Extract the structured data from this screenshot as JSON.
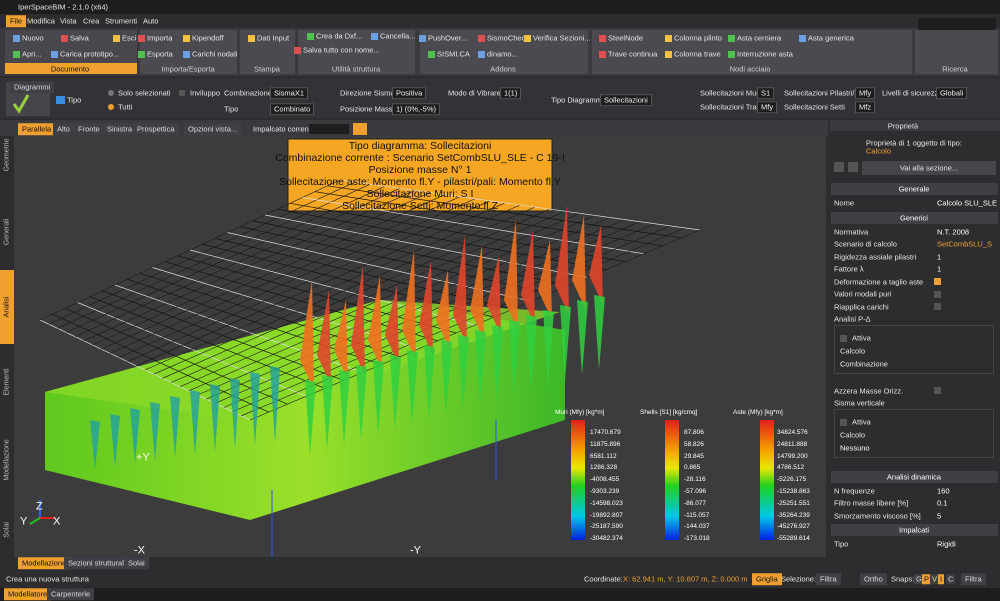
{
  "title_bar": {
    "title": "IperSpaceBIM - 2.1.0 (x64)"
  },
  "menu": [
    "File",
    "Modifica",
    "Vista",
    "Crea",
    "Strumenti",
    "Auto"
  ],
  "ribbon": [
    {
      "label": "Documento",
      "items": [
        "Nuovo",
        "Salva",
        "Esci",
        "Apri...",
        "Carica prototipo..."
      ]
    },
    {
      "label": "Importa/Esporta",
      "items": [
        "Importa",
        "Kipendoff",
        "Esporta",
        "Carichi nodali"
      ]
    },
    {
      "label": "Stampa",
      "items": [
        "Dati Input"
      ]
    },
    {
      "label": "Utilità struttura",
      "items": [
        "Crea da Dxf...",
        "Cancella...",
        "Salva tutto con nome..."
      ]
    },
    {
      "label": "Addons",
      "items": [
        "PushOver...",
        "SismoCheck",
        "Verifica Sezioni...",
        "SISMI.CA",
        "dinamo..."
      ]
    },
    {
      "label": "Nodi acciaio",
      "items": [
        "SteelNode",
        "Colonna plinto",
        "Asta cerniera",
        "Asta generica",
        "Trave continua",
        "Colonna trave",
        "Interruzione asta"
      ]
    },
    {
      "label": "Ricerca",
      "items": []
    }
  ],
  "diagram_toolbar": {
    "tab": "Diagrammi",
    "tipo": "Tipo",
    "scope": [
      "Solo selezionati",
      "Tutti"
    ],
    "inviluppo": "Inviluppo",
    "fields": [
      {
        "label": "Combinazione",
        "value": "SismaX1"
      },
      {
        "label": "Direzione Sisma",
        "value": "Positiva"
      },
      {
        "label": "Modo di Vibrare",
        "value": "1(1)"
      },
      {
        "label": "Tipo",
        "value": "Combinato"
      },
      {
        "label": "Posizione Masse",
        "value": "1) (0%,-5%)"
      },
      {
        "label": "Tipo Diagramma",
        "value": "Sollecitazioni"
      },
      {
        "label": "Sollecitazioni Muri",
        "value": "S1"
      },
      {
        "label": "Sollecitazioni Pilastri/Pali",
        "value": "Mfy"
      },
      {
        "label": "Livelli di sicurezza",
        "value": "Globali"
      },
      {
        "label": "Sollecitazioni Travi",
        "value": "Mfy"
      },
      {
        "label": "Sollecitazioni Setti",
        "value": "Mfz"
      }
    ]
  },
  "view_tabs": [
    "Parallela",
    "Alto",
    "Fronte",
    "Sinistra",
    "Prospettica",
    "Opzioni vista..."
  ],
  "impalcato_label": "Impalcato corrente:",
  "side_tabs": [
    "Geometrie",
    "Generali",
    "Analisi",
    "Elementi",
    "Modellazione",
    "Solai"
  ],
  "info_box": [
    "Tipo diagramma: Sollecitazioni",
    "Combinazione corrente : Scenario SetCombSLU_SLE - C 19-I",
    "Posizione masse N° 1",
    "Sollecitazione aste: Momento fl.Y - pilastri/pali: Momento fl.Y",
    "Sollecitazione Muri: S I",
    "Sollecitazione Setti: Momento fl.Z"
  ],
  "legends": [
    {
      "title": "Muri (Mfy) [kg*m]",
      "values": [
        "17470.679",
        "11875.896",
        "6581.112",
        "1286.328",
        "-4008.455",
        "-9303.239",
        "-14598.023",
        "-19892.807",
        "-25187.590",
        "-30482.374"
      ]
    },
    {
      "title": "Shells [S1] [kg/cmq]",
      "values": [
        "87.806",
        "58.826",
        "29.845",
        "0.865",
        "-28.116",
        "-57.096",
        "-86.077",
        "-115.057",
        "-144.037",
        "-173.018"
      ]
    },
    {
      "title": "Aste (Mfy) [kg*m]",
      "values": [
        "34824.576",
        "24811.888",
        "14799.200",
        "4786.512",
        "-5226.175",
        "-15238.863",
        "-25251.551",
        "-35264.239",
        "-45276.927",
        "-55289.614"
      ]
    }
  ],
  "axis_labels": [
    "+Y",
    "-X",
    "-Y",
    "Z",
    "Y",
    "X"
  ],
  "viewport_tabs": [
    "Modellazione",
    "Sezioni strutturali",
    "Solai"
  ],
  "status": {
    "message": "Crea una nuova struttura",
    "coord_label": "Coordinate:",
    "coord_value": "X: 62.941 m, Y: 10.607 m, Z: 0.000 m",
    "grid": "Griglia",
    "selection_label": "Selezione:",
    "selection_filter": "Filtra",
    "ortho": "Ortho",
    "snaps_label": "Snaps:",
    "snaps": [
      "G",
      "P",
      "V",
      "I",
      "C"
    ],
    "filter": "Filtra"
  },
  "app_tabs": [
    "Modellatore",
    "Carpenterie"
  ],
  "properties": {
    "title": "Proprietà",
    "subtitle": "Proprietà di 1 oggetto di tipo:",
    "object_type": "Calcolo",
    "goto": "Vai alla sezione...",
    "sections": [
      {
        "title": "Generale",
        "rows": [
          {
            "label": "Nome",
            "value": "Calcolo SLU_SLE"
          }
        ]
      },
      {
        "title": "Generici",
        "rows": [
          {
            "label": "Normativa",
            "value": "N.T. 2008"
          },
          {
            "label": "Scenario di calcolo",
            "value": "SetCombSLU_S"
          },
          {
            "label": "Rigidezza assiale pilastri",
            "value": "1"
          },
          {
            "label": "Fattore λ",
            "value": "1"
          },
          {
            "label": "Deformazione a taglio aste",
            "checked": true
          },
          {
            "label": "Valori modali puri",
            "checked": false
          },
          {
            "label": "Riapplica carichi",
            "checked": false
          },
          {
            "label": "Analisi P-Δ",
            "sub": [
              {
                "label": "Attiva",
                "checked": false
              },
              {
                "label": "Calcolo"
              },
              {
                "label": "Combinazione"
              }
            ]
          },
          {
            "label": "Azzera Masse Orizz.",
            "checked": false
          },
          {
            "label": "Sisma verticale",
            "sub": [
              {
                "label": "Attiva",
                "checked": false
              },
              {
                "label": "Calcolo",
                "value": "Nessuno"
              }
            ]
          }
        ]
      },
      {
        "title": "Analisi dinamica",
        "rows": [
          {
            "label": "N frequenze",
            "value": "160"
          },
          {
            "label": "Filtro masse libere [%]",
            "value": "0.1"
          },
          {
            "label": "Smorzamento viscoso [%]",
            "value": "5"
          }
        ]
      },
      {
        "title": "Impalcati",
        "rows": [
          {
            "label": "Tipo",
            "value": "Rigidi"
          }
        ]
      }
    ]
  }
}
